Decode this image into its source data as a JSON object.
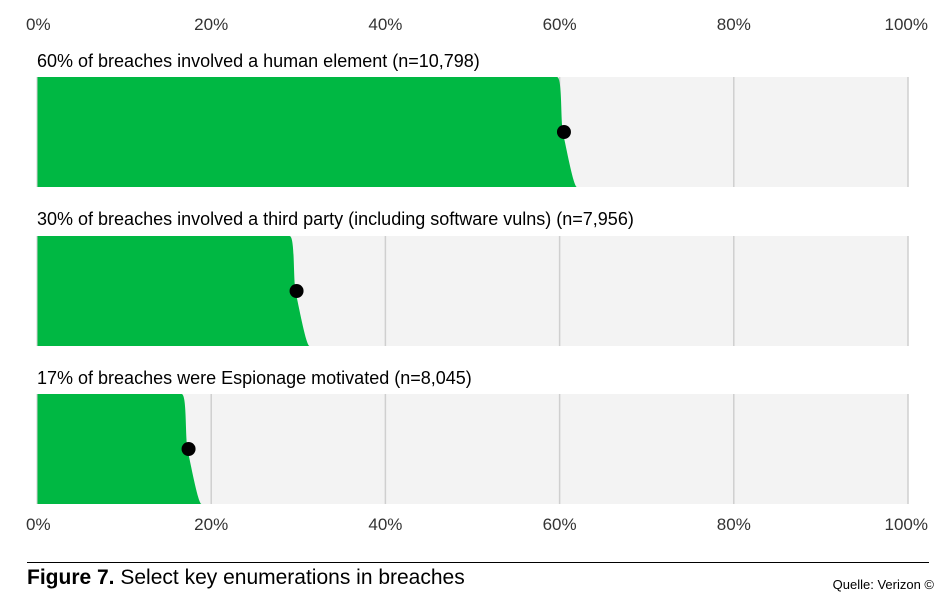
{
  "chart_data": {
    "type": "bar",
    "orientation": "horizontal",
    "xlim": [
      0,
      100
    ],
    "tick_labels": [
      "0%",
      "20%",
      "40%",
      "60%",
      "80%",
      "100%"
    ],
    "tick_values": [
      0,
      20,
      40,
      60,
      80,
      100
    ],
    "grid": true,
    "panels": [
      {
        "title": "60% of breaches involved a human element (n=10,798)",
        "value": 60.5
      },
      {
        "title": "30% of breaches involved a third party (including software vulns) (n=7,956)",
        "value": 29.8
      },
      {
        "title": "17% of breaches were Espionage motivated (n=8,045)",
        "value": 17.4
      }
    ]
  },
  "caption": {
    "label": "Figure 7.",
    "text": " Select key enumerations in breaches"
  },
  "source": "Quelle: Verizon ©",
  "colors": {
    "bar": "#00b843",
    "track": "#f3f3f3",
    "grid": "#cfcfcf",
    "dot": "#000000"
  }
}
